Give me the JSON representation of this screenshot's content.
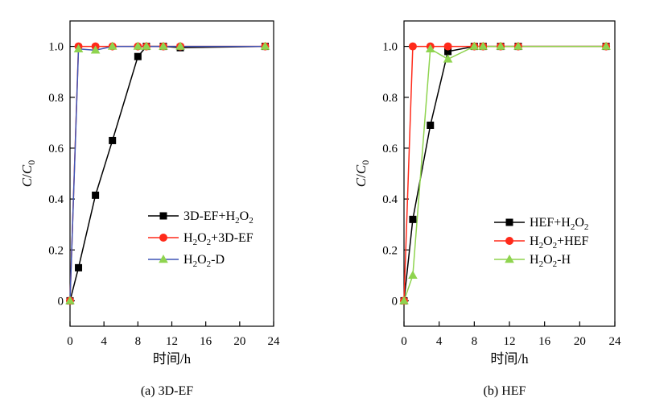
{
  "chart_data": [
    {
      "type": "line",
      "caption": "(a) 3D-EF",
      "xlabel": "时间/h",
      "ylabel": "C/C0",
      "xlim": [
        0,
        24
      ],
      "ylim": [
        -0.1,
        1.1
      ],
      "xticks": [
        0,
        4,
        8,
        12,
        16,
        20,
        24
      ],
      "yticks": [
        0,
        0.2,
        0.4,
        0.6,
        0.8,
        1.0
      ],
      "xtick_labels": [
        "0",
        "4",
        "8",
        "12",
        "16",
        "20",
        "24"
      ],
      "ytick_labels": [
        "0",
        "0.2",
        "0.4",
        "0.6",
        "0.8",
        "1.0"
      ],
      "legend_position": "center-right",
      "grid": false,
      "series": [
        {
          "name": "3D-EF+H2O2",
          "legend_main": "3D-EF+H",
          "legend_sub1": "2",
          "legend_mid": "O",
          "legend_sub2": "2",
          "legend_tail": "",
          "marker": "square",
          "color": "#000000",
          "line_color": "#000000",
          "x": [
            0,
            1,
            3,
            5,
            8,
            9,
            11,
            13,
            23
          ],
          "y": [
            0,
            0.13,
            0.415,
            0.63,
            0.96,
            1.0,
            1.0,
            0.995,
            1.0
          ]
        },
        {
          "name": "H2O2+3D-EF",
          "legend_main": "H",
          "legend_sub1": "2",
          "legend_mid": "O",
          "legend_sub2": "2",
          "legend_tail": "+3D-EF",
          "marker": "circle",
          "color": "#ff2a1a",
          "line_color": "#ff2a1a",
          "x": [
            0,
            1,
            3,
            5,
            8,
            9,
            11,
            13,
            23
          ],
          "y": [
            0,
            1.0,
            1.0,
            1.0,
            1.0,
            1.0,
            1.0,
            1.0,
            1.0
          ]
        },
        {
          "name": "H2O2-D",
          "legend_main": "H",
          "legend_sub1": "2",
          "legend_mid": "O",
          "legend_sub2": "2",
          "legend_tail": "-D",
          "marker": "triangle",
          "color": "#8fd44f",
          "line_color": "#3f55b5",
          "x": [
            0,
            1,
            3,
            5,
            8,
            9,
            11,
            13,
            23
          ],
          "y": [
            0,
            0.99,
            0.985,
            1.0,
            1.0,
            1.0,
            1.0,
            1.0,
            1.0
          ]
        }
      ]
    },
    {
      "type": "line",
      "caption": "(b) HEF",
      "xlabel": "时间/h",
      "ylabel": "C/C0",
      "xlim": [
        0,
        24
      ],
      "ylim": [
        -0.1,
        1.1
      ],
      "xticks": [
        0,
        4,
        8,
        12,
        16,
        20,
        24
      ],
      "yticks": [
        0,
        0.2,
        0.4,
        0.6,
        0.8,
        1.0
      ],
      "xtick_labels": [
        "0",
        "4",
        "8",
        "12",
        "16",
        "20",
        "24"
      ],
      "ytick_labels": [
        "0",
        "0.2",
        "0.4",
        "0.6",
        "0.8",
        "1.0"
      ],
      "legend_position": "lower-right",
      "grid": false,
      "series": [
        {
          "name": "HEF+H2O2",
          "legend_main": "HEF+H",
          "legend_sub1": "2",
          "legend_mid": "O",
          "legend_sub2": "2",
          "legend_tail": "",
          "marker": "square",
          "color": "#000000",
          "line_color": "#000000",
          "x": [
            0,
            1,
            3,
            5,
            8,
            9,
            11,
            13,
            23
          ],
          "y": [
            0,
            0.32,
            0.69,
            0.98,
            1.0,
            1.0,
            1.0,
            1.0,
            1.0
          ]
        },
        {
          "name": "H2O2+HEF",
          "legend_main": "H",
          "legend_sub1": "2",
          "legend_mid": "O",
          "legend_sub2": "2",
          "legend_tail": "+HEF",
          "marker": "circle",
          "color": "#ff2a1a",
          "line_color": "#ff2a1a",
          "x": [
            0,
            1,
            3,
            5,
            8,
            9,
            11,
            13,
            23
          ],
          "y": [
            0,
            1.0,
            1.0,
            1.0,
            1.0,
            1.0,
            1.0,
            1.0,
            1.0
          ]
        },
        {
          "name": "H2O2-H",
          "legend_main": "H",
          "legend_sub1": "2",
          "legend_mid": "O",
          "legend_sub2": "2",
          "legend_tail": "-H",
          "marker": "triangle",
          "color": "#8fd44f",
          "line_color": "#8fd44f",
          "x": [
            0,
            1,
            3,
            5,
            8,
            9,
            11,
            13,
            23
          ],
          "y": [
            0,
            0.1,
            0.99,
            0.95,
            1.0,
            1.0,
            1.0,
            1.0,
            1.0
          ]
        }
      ]
    }
  ]
}
